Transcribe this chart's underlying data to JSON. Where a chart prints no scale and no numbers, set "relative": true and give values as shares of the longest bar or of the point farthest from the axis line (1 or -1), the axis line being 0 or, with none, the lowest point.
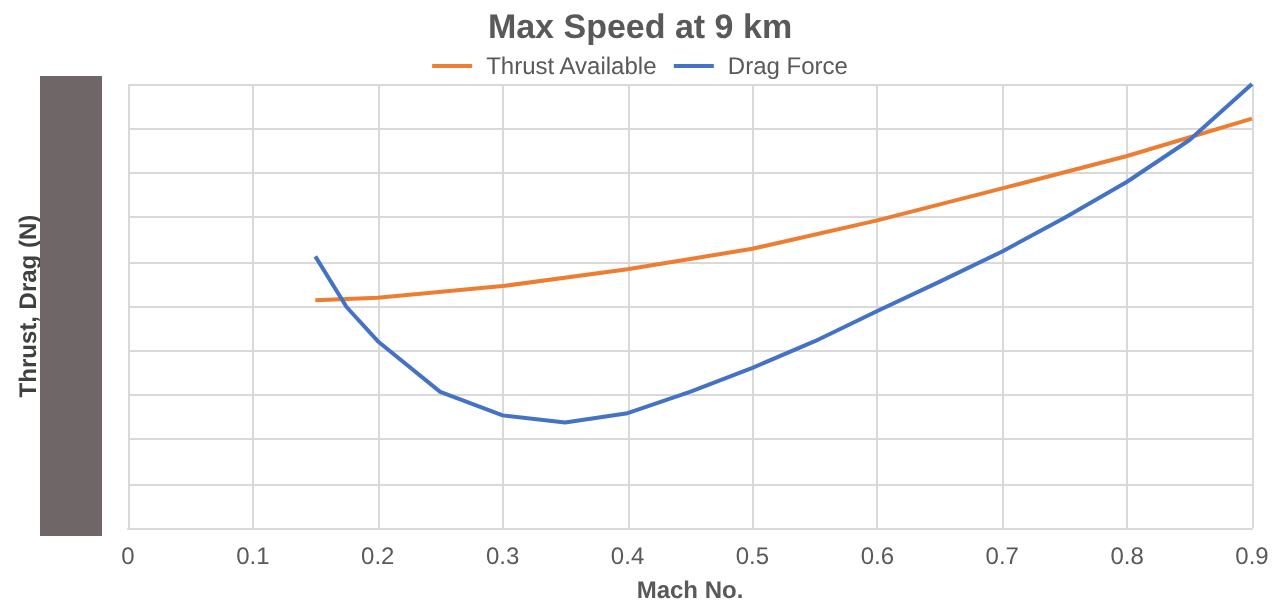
{
  "chart_data": {
    "type": "line",
    "title": "Max Speed at 9 km",
    "xlabel": "Mach No.",
    "ylabel": "Thrust, Drag (N)",
    "relative": true,
    "xlim": [
      0,
      0.9
    ],
    "xticks": [
      0,
      0.1,
      0.2,
      0.3,
      0.4,
      0.5,
      0.6,
      0.7,
      0.8,
      0.9
    ],
    "grid": true,
    "legend": "top",
    "marker": "none",
    "series": [
      {
        "name": "Thrust Available",
        "color": "#ed7d31",
        "x": [
          0.15,
          0.2,
          0.3,
          0.4,
          0.5,
          0.6,
          0.7,
          0.8,
          0.9
        ],
        "values": [
          0.513,
          0.519,
          0.545,
          0.583,
          0.629,
          0.693,
          0.765,
          0.838,
          0.922
        ]
      },
      {
        "name": "Drag Force",
        "color": "#4472c4",
        "x": [
          0.15,
          0.175,
          0.2,
          0.25,
          0.3,
          0.35,
          0.4,
          0.45,
          0.5,
          0.55,
          0.6,
          0.65,
          0.7,
          0.75,
          0.8,
          0.85,
          0.9
        ],
        "values": [
          0.612,
          0.498,
          0.421,
          0.307,
          0.254,
          0.238,
          0.259,
          0.307,
          0.361,
          0.421,
          0.489,
          0.555,
          0.623,
          0.699,
          0.78,
          0.874,
          1
        ]
      }
    ]
  }
}
